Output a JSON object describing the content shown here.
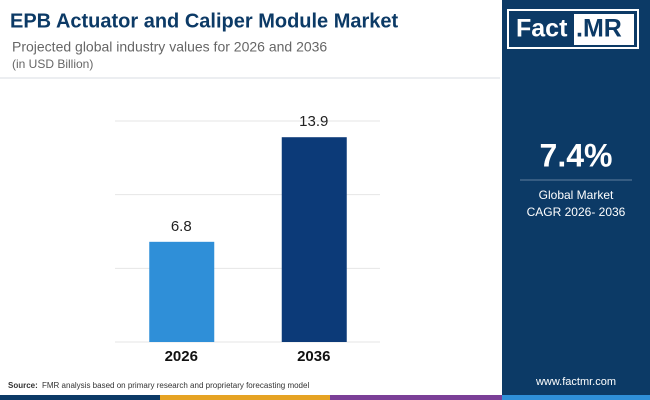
{
  "header": {
    "title": "EPB Actuator and Caliper Module Market",
    "subtitle": "Projected global industry values for 2026 and 2036",
    "unit_note": "(in USD Billion)"
  },
  "chart_data": {
    "type": "bar",
    "categories": [
      "2026",
      "2036"
    ],
    "values": [
      6.8,
      13.9
    ],
    "colors": [
      "#2f8fd8",
      "#0c3a78"
    ],
    "ylim": [
      0,
      15
    ],
    "yticks": [
      0,
      5,
      10,
      15
    ],
    "grid": true
  },
  "side_panel": {
    "logo_main": "Fact",
    "logo_accent": ".MR",
    "cagr": "7.4%",
    "cagr_label_1": "Global Market",
    "cagr_label_2": "CAGR 2026- 2036",
    "website": "www.factmr.com"
  },
  "footer": {
    "source_label": "Source:",
    "source_text": "FMR analysis based on primary research and proprietary forecasting model"
  }
}
